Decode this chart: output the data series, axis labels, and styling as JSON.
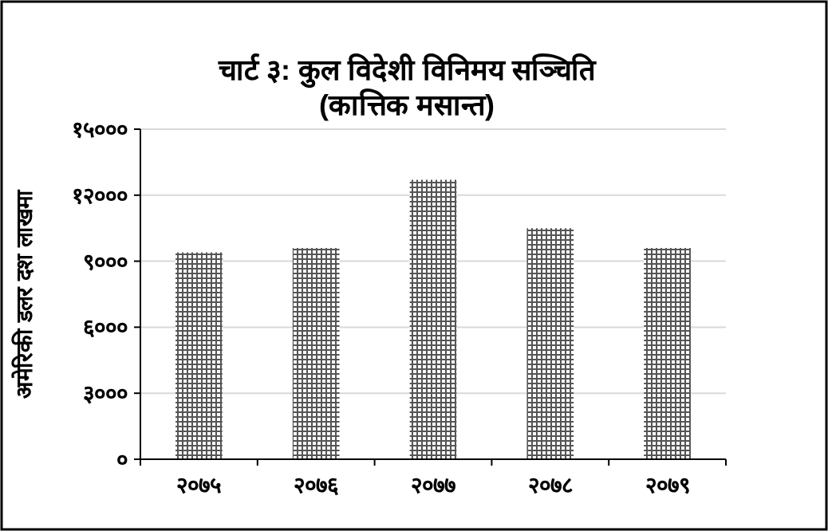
{
  "chart_data": {
    "type": "bar",
    "title": "चार्ट ३: कुल विदेशी विनिमय सञ्चिति\n(कात्तिक मसान्त)",
    "ylabel": "अमेरिकी डलर दश लाखमा",
    "categories": [
      "२०७५",
      "२०७६",
      "२०७७",
      "२०७८",
      "२०७९"
    ],
    "values": [
      9400,
      9600,
      12700,
      10500,
      9600
    ],
    "color": "#555555",
    "ylim": [
      0,
      15000
    ],
    "yticks": [
      {
        "value": 0,
        "label": "०"
      },
      {
        "value": 3000,
        "label": "३०००"
      },
      {
        "value": 6000,
        "label": "६०००"
      },
      {
        "value": 9000,
        "label": "९०००"
      },
      {
        "value": 12000,
        "label": "१२०००"
      },
      {
        "value": 15000,
        "label": "१५०००"
      }
    ],
    "grid": "y"
  }
}
